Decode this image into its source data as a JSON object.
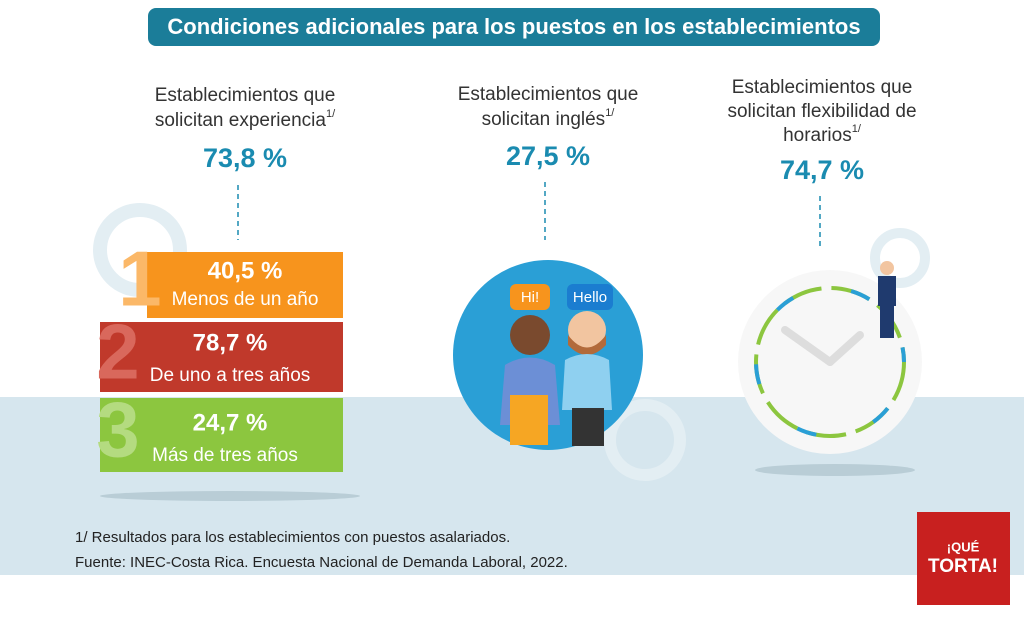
{
  "title": "Condiciones adicionales para los puestos en los establecimientos",
  "panels": [
    {
      "lines": [
        "Establecimientos que",
        "solicitan experiencia"
      ],
      "note": "1/",
      "value": "73,8 %"
    },
    {
      "lines": [
        "Establecimientos que",
        "solicitan inglés"
      ],
      "note": "1/",
      "value": "27,5 %"
    },
    {
      "lines": [
        "Establecimientos que",
        "solicitan flexibilidad de",
        "horarios"
      ],
      "note": "1/",
      "value": "74,7 %"
    }
  ],
  "experience": [
    {
      "number": "1",
      "value": "40,5 %",
      "label": "Menos de un año"
    },
    {
      "number": "2",
      "value": "78,7 %",
      "label": "De uno a tres años"
    },
    {
      "number": "3",
      "value": "24,7 %",
      "label": "Más de tres años"
    }
  ],
  "speech": [
    "Hi!",
    "Hello"
  ],
  "footnote": "1/ Resultados para los establecimientos con puestos asalariados.",
  "source": "Fuente: INEC-Costa Rica. Encuesta Nacional de Demanda Laboral, 2022.",
  "logo": {
    "top": "¡QUÉ",
    "main": "TORTA!"
  }
}
